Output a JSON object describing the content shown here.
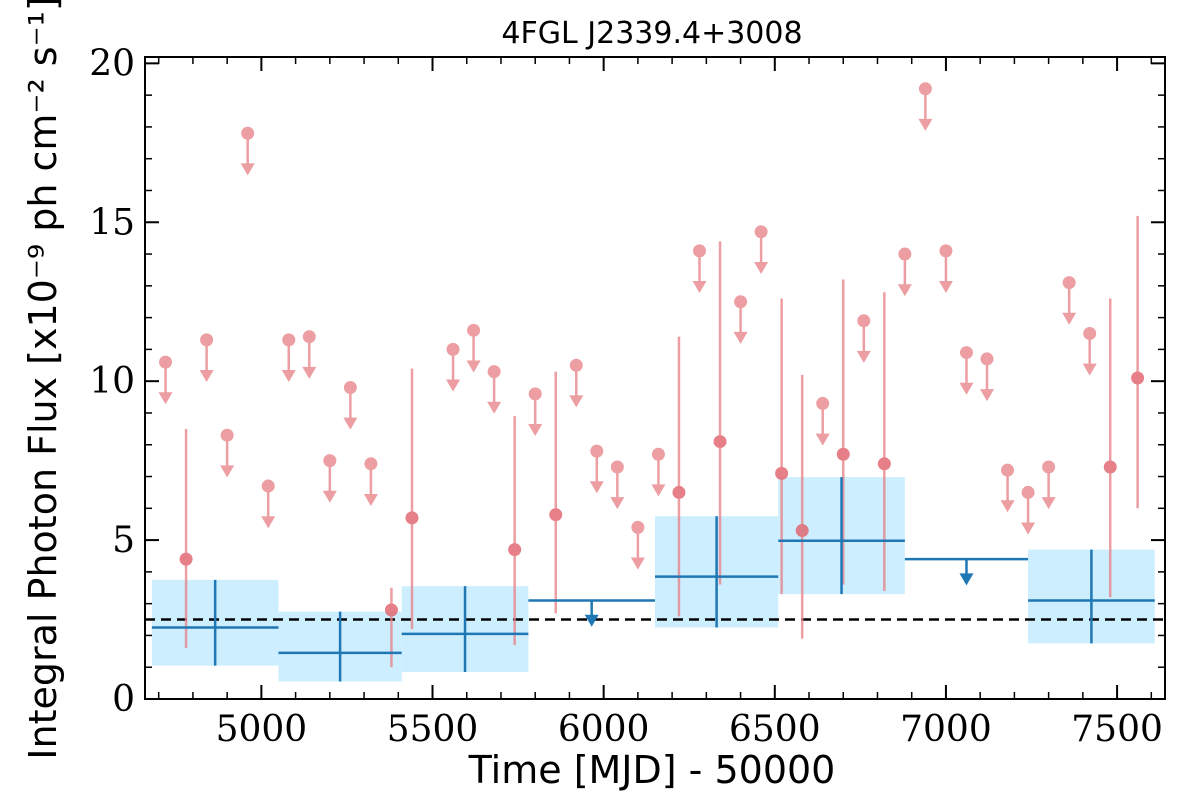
{
  "chart_data": {
    "type": "scatter",
    "title": "4FGL J2339.4+3008",
    "xlabel": "Time [MJD] - 50000",
    "ylabel": "Integral Photon Flux [x10⁻⁹ ph cm⁻² s⁻¹]",
    "xlim": [
      4660,
      7640
    ],
    "ylim": [
      0,
      20.2
    ],
    "x_ticks": [
      5000,
      5500,
      6000,
      6500,
      7000,
      7500
    ],
    "y_ticks": [
      0,
      5,
      10,
      15,
      20
    ],
    "baseline": 2.5,
    "colors": {
      "short_bins": "#e8868c",
      "long_bins": "#1f77b4",
      "band": "#cceeff",
      "baseline": "#000000"
    },
    "short_bin_upper_limits": [
      {
        "x": 4720,
        "y": 10.6
      },
      {
        "x": 4840,
        "y": 11.3
      },
      {
        "x": 4900,
        "y": 8.3
      },
      {
        "x": 4960,
        "y": 17.8
      },
      {
        "x": 5020,
        "y": 6.7
      },
      {
        "x": 5080,
        "y": 11.3
      },
      {
        "x": 5140,
        "y": 11.4
      },
      {
        "x": 5200,
        "y": 7.5
      },
      {
        "x": 5260,
        "y": 9.8
      },
      {
        "x": 5320,
        "y": 7.4
      },
      {
        "x": 5560,
        "y": 11.0
      },
      {
        "x": 5620,
        "y": 11.6
      },
      {
        "x": 5680,
        "y": 10.3
      },
      {
        "x": 5800,
        "y": 9.6
      },
      {
        "x": 5920,
        "y": 10.5
      },
      {
        "x": 5980,
        "y": 7.8
      },
      {
        "x": 6040,
        "y": 7.3
      },
      {
        "x": 6100,
        "y": 5.4
      },
      {
        "x": 6160,
        "y": 7.7
      },
      {
        "x": 6280,
        "y": 14.1
      },
      {
        "x": 6400,
        "y": 12.5
      },
      {
        "x": 6460,
        "y": 14.7
      },
      {
        "x": 6640,
        "y": 9.3
      },
      {
        "x": 6760,
        "y": 11.9
      },
      {
        "x": 6880,
        "y": 14.0
      },
      {
        "x": 6940,
        "y": 19.2
      },
      {
        "x": 7000,
        "y": 14.1
      },
      {
        "x": 7060,
        "y": 10.9
      },
      {
        "x": 7120,
        "y": 10.7
      },
      {
        "x": 7180,
        "y": 7.2
      },
      {
        "x": 7240,
        "y": 6.5
      },
      {
        "x": 7300,
        "y": 7.3
      },
      {
        "x": 7360,
        "y": 13.1
      },
      {
        "x": 7420,
        "y": 11.5
      }
    ],
    "short_bin_detections": [
      {
        "x": 4780,
        "y": 4.4,
        "y_low": 1.6,
        "y_high": 8.5
      },
      {
        "x": 5380,
        "y": 2.8,
        "y_low": 1.0,
        "y_high": 3.5
      },
      {
        "x": 5440,
        "y": 5.7,
        "y_low": 2.2,
        "y_high": 10.4
      },
      {
        "x": 5740,
        "y": 4.7,
        "y_low": 1.7,
        "y_high": 8.9
      },
      {
        "x": 5860,
        "y": 5.8,
        "y_low": 2.7,
        "y_high": 10.3
      },
      {
        "x": 6220,
        "y": 6.5,
        "y_low": 2.6,
        "y_high": 11.4
      },
      {
        "x": 6340,
        "y": 8.1,
        "y_low": 3.6,
        "y_high": 14.4
      },
      {
        "x": 6520,
        "y": 7.1,
        "y_low": 3.3,
        "y_high": 12.6
      },
      {
        "x": 6580,
        "y": 5.3,
        "y_low": 1.9,
        "y_high": 10.2
      },
      {
        "x": 6700,
        "y": 7.7,
        "y_low": 3.6,
        "y_high": 13.2
      },
      {
        "x": 6820,
        "y": 7.4,
        "y_low": 3.4,
        "y_high": 12.8
      },
      {
        "x": 7480,
        "y": 7.3,
        "y_low": 3.2,
        "y_high": 12.6
      },
      {
        "x": 7560,
        "y": 10.1,
        "y_low": 6.0,
        "y_high": 15.2
      }
    ],
    "long_bin_detections": [
      {
        "x0": 4680,
        "x1": 5050,
        "x": 4865,
        "y": 2.25,
        "y_low": 1.05,
        "y_high": 3.75
      },
      {
        "x0": 5050,
        "x1": 5410,
        "x": 5230,
        "y": 1.45,
        "y_low": 0.55,
        "y_high": 2.75
      },
      {
        "x0": 5410,
        "x1": 5780,
        "x": 5595,
        "y": 2.05,
        "y_low": 0.85,
        "y_high": 3.55
      },
      {
        "x0": 6150,
        "x1": 6510,
        "x": 6330,
        "y": 3.85,
        "y_low": 2.25,
        "y_high": 5.75
      },
      {
        "x0": 6510,
        "x1": 6880,
        "x": 6695,
        "y": 4.98,
        "y_low": 3.3,
        "y_high": 6.98
      },
      {
        "x0": 7240,
        "x1": 7610,
        "x": 7425,
        "y": 3.1,
        "y_low": 1.75,
        "y_high": 4.7
      }
    ],
    "long_bin_upper_limits": [
      {
        "x0": 5780,
        "x1": 6150,
        "x": 5965,
        "y": 3.1
      },
      {
        "x0": 6880,
        "x1": 7240,
        "x": 7060,
        "y": 4.4
      }
    ]
  }
}
